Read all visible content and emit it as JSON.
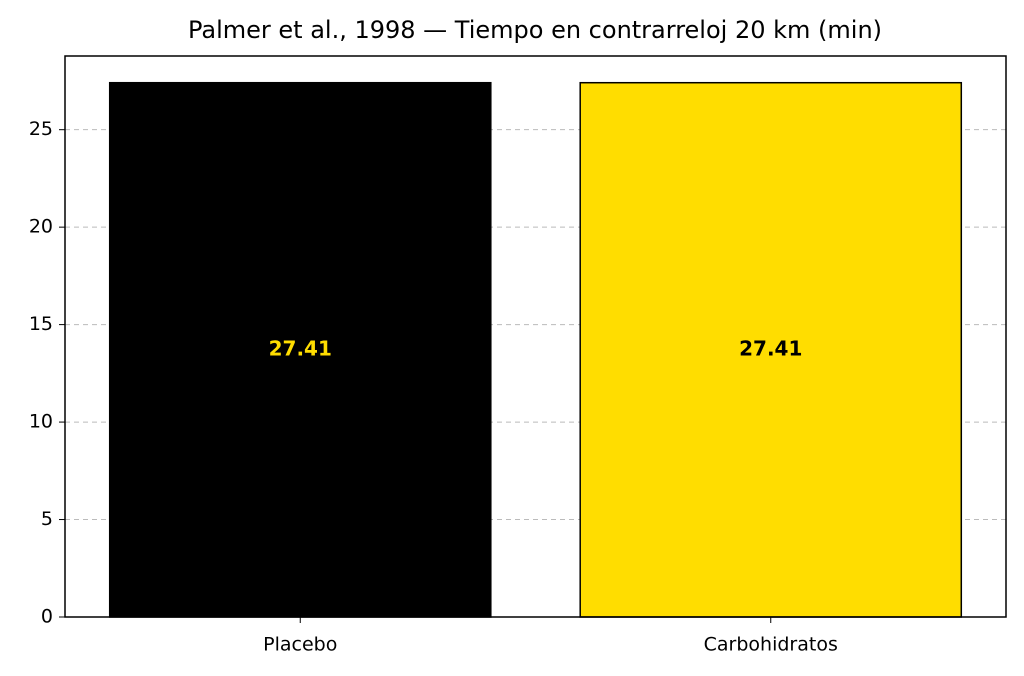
{
  "chart_data": {
    "type": "bar",
    "title": "Palmer et al., 1998 — Tiempo en contrarreloj 20 km (min)",
    "categories": [
      "Placebo",
      "Carbohidratos"
    ],
    "values": [
      27.41,
      27.41
    ],
    "colors": [
      "#000000",
      "#FFDD00"
    ],
    "label_colors": [
      "#FFDD00",
      "#000000"
    ],
    "ylim": [
      0,
      28.78
    ],
    "yticks": [
      0,
      5,
      10,
      15,
      20,
      25
    ],
    "grid": true
  }
}
